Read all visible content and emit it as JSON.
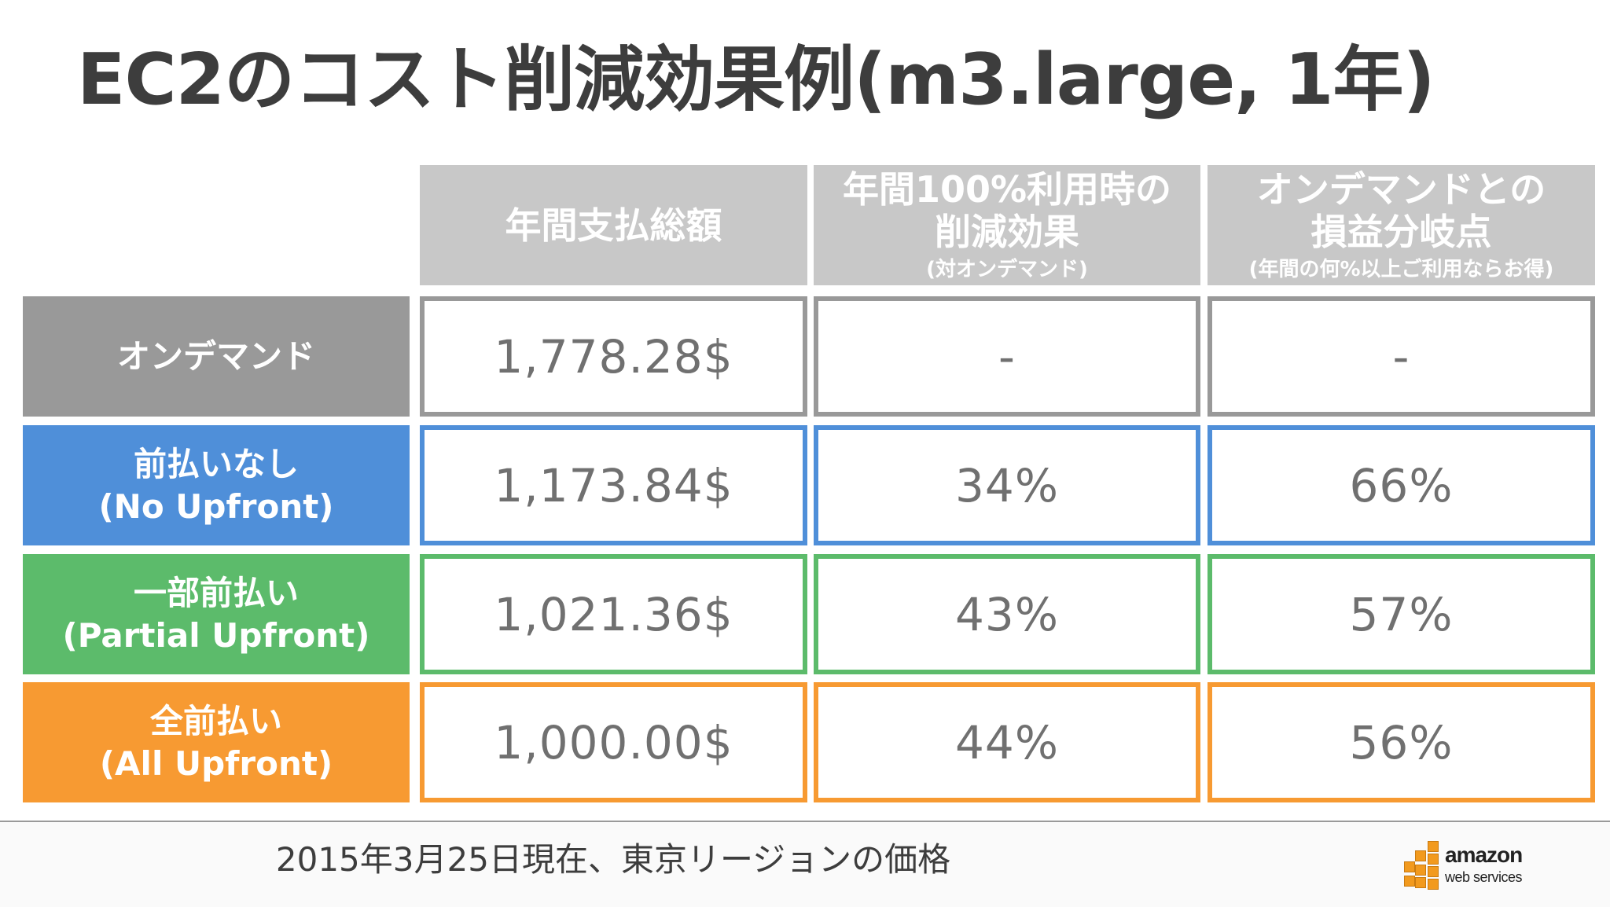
{
  "title": "EC2のコスト削減効果例(m3.large, 1年)",
  "columns": [
    {
      "main": "年間支払総額",
      "sub": ""
    },
    {
      "main": "年間100%利用時の\n削減効果",
      "sub": "(対オンデマンド)"
    },
    {
      "main": "オンデマンドとの\n損益分岐点",
      "sub": "(年間の何%以上ご利用ならお得)"
    }
  ],
  "rows": [
    {
      "label": "オンデマンド",
      "label_en": "",
      "color": "#999999",
      "cells": [
        "1,778.28$",
        "-",
        "-"
      ]
    },
    {
      "label": "前払いなし",
      "label_en": "(No Upfront)",
      "color": "#4f8fd9",
      "cells": [
        "1,173.84$",
        "34%",
        "66%"
      ]
    },
    {
      "label": "一部前払い",
      "label_en": "(Partial Upfront)",
      "color": "#5cbb6b",
      "cells": [
        "1,021.36$",
        "43%",
        "57%"
      ]
    },
    {
      "label": "全前払い",
      "label_en": "(All Upfront)",
      "color": "#f79a32",
      "cells": [
        "1,000.00$",
        "44%",
        "56%"
      ]
    }
  ],
  "footer_note": "2015年3月25日現在、東京リージョンの価格",
  "logo": {
    "line1": "amazon",
    "line2": "web services",
    "icon": "aws-cubes-icon"
  }
}
